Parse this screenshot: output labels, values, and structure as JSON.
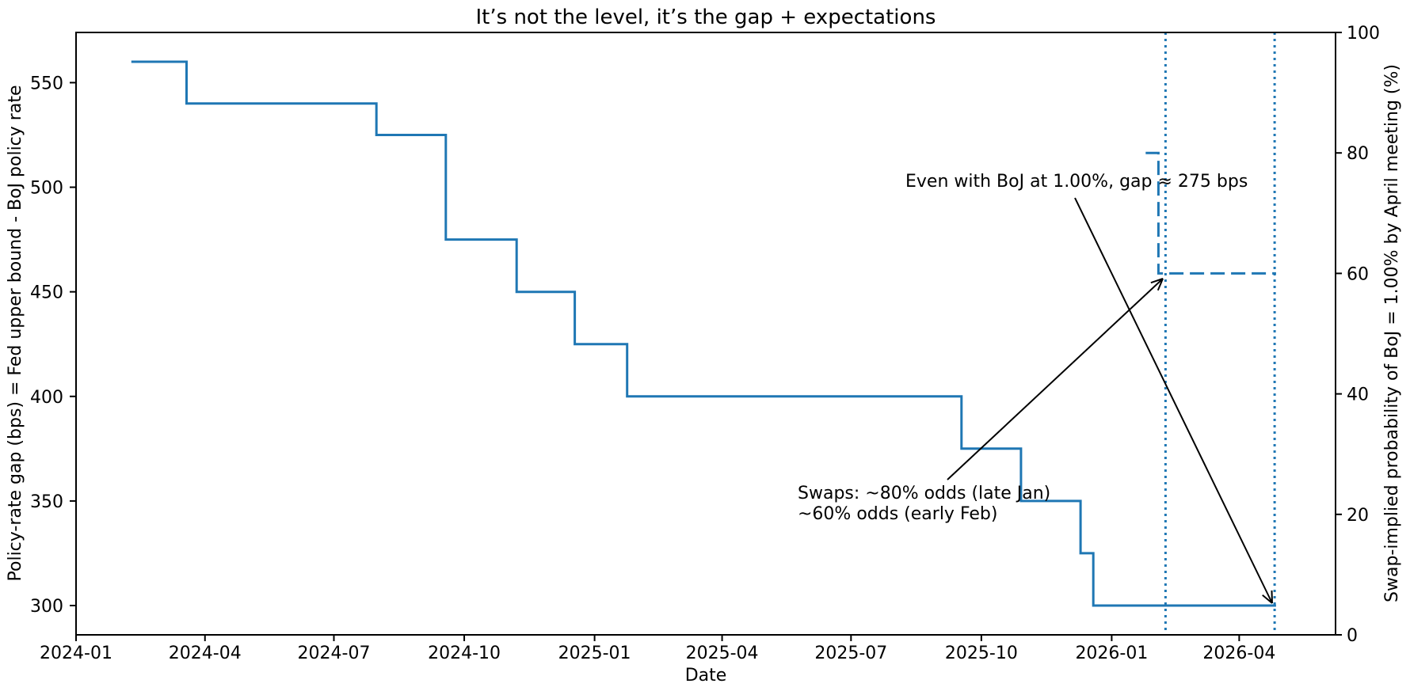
{
  "figure": {
    "background": "#ffffff",
    "accent_blue": "#1f77b4",
    "text_color": "#000000"
  },
  "chart_data": {
    "type": "line",
    "title": "It’s not the level, it’s the gap + expectations",
    "xlabel": "Date",
    "ylabel_left": "Policy-rate gap (bps) = Fed upper bound - BoJ policy rate",
    "ylabel_right": "Swap-implied probability of BoJ = 1.00% by April meeting (%)",
    "x_tick_labels": [
      "2024-01",
      "2024-04",
      "2024-07",
      "2024-10",
      "2025-01",
      "2025-04",
      "2025-07",
      "2025-10",
      "2026-01",
      "2026-04"
    ],
    "left_ticks": [
      300,
      350,
      400,
      450,
      500,
      550
    ],
    "right_ticks": [
      0,
      20,
      40,
      60,
      80,
      100
    ],
    "xlim": [
      "2024-01-01",
      "2026-06-08"
    ],
    "ylim_left": [
      286,
      574
    ],
    "ylim_right": [
      0,
      100
    ],
    "grid": false,
    "legend": "none",
    "series": [
      {
        "name": "Policy-rate gap (bps), Fed upper bound minus BoJ policy rate",
        "axis": "left",
        "style": "solid",
        "color": "#1f77b4",
        "step": true,
        "points": [
          [
            "2024-02-09",
            560
          ],
          [
            "2024-03-19",
            540
          ],
          [
            "2024-07-31",
            525
          ],
          [
            "2024-09-18",
            475
          ],
          [
            "2024-11-07",
            450
          ],
          [
            "2024-12-18",
            425
          ],
          [
            "2025-01-24",
            400
          ],
          [
            "2025-09-17",
            375
          ],
          [
            "2025-10-29",
            350
          ],
          [
            "2025-12-10",
            325
          ],
          [
            "2025-12-19",
            300
          ],
          [
            "2026-04-27",
            300
          ]
        ]
      },
      {
        "name": "Swap-implied probability of BoJ = 1.00% by April meeting (%)",
        "axis": "right",
        "style": "dashed",
        "color": "#1f77b4",
        "step": true,
        "points": [
          [
            "2026-01-25",
            80
          ],
          [
            "2026-02-03",
            60
          ],
          [
            "2026-04-27",
            60
          ]
        ]
      }
    ],
    "vlines": [
      {
        "date": "2026-02-08",
        "style": "dotted",
        "color": "#1f77b4"
      },
      {
        "date": "2026-04-26",
        "style": "dotted",
        "color": "#1f77b4"
      }
    ],
    "annotations": [
      {
        "text": "Even with BoJ at 1.00%, gap ≈ 275 bps",
        "points_to": "gap of 300 bps at April 2026 meeting"
      },
      {
        "text_lines": [
          "Swaps: ~80% odds (late Jan)",
          "~60% odds (early Feb)"
        ],
        "points_to": "60% probability level in early Feb 2026"
      }
    ]
  }
}
